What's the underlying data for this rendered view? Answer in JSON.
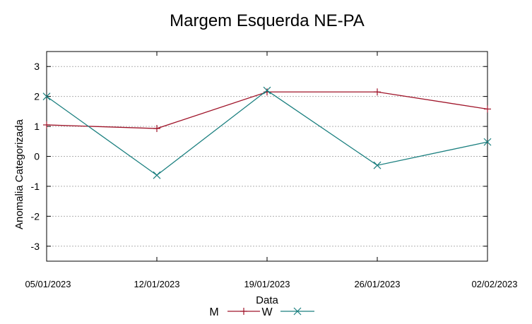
{
  "chart_data": {
    "type": "line",
    "title": "Margem Esquerda NE-PA",
    "xlabel": "Data",
    "ylabel": "Anomalia Categorizada",
    "categories": [
      "05/01/2023",
      "12/01/2023",
      "19/01/2023",
      "26/01/2023",
      "02/02/2023"
    ],
    "y_ticks": [
      "3",
      "2",
      "1",
      "0",
      "-1",
      "-2",
      "-3"
    ],
    "y_tick_values": [
      3,
      2,
      1,
      0,
      -1,
      -2,
      -3
    ],
    "ylim": [
      -3.5,
      3.5
    ],
    "grid": true,
    "legend_position": "bottom-center",
    "series": [
      {
        "name": "M",
        "values": [
          1.05,
          0.93,
          2.15,
          2.15,
          1.58
        ],
        "color": "#a0152a",
        "marker": "plus"
      },
      {
        "name": "W",
        "values": [
          2.0,
          -0.63,
          2.2,
          -0.3,
          0.48
        ],
        "color": "#1a7f7f",
        "marker": "cross"
      }
    ]
  }
}
